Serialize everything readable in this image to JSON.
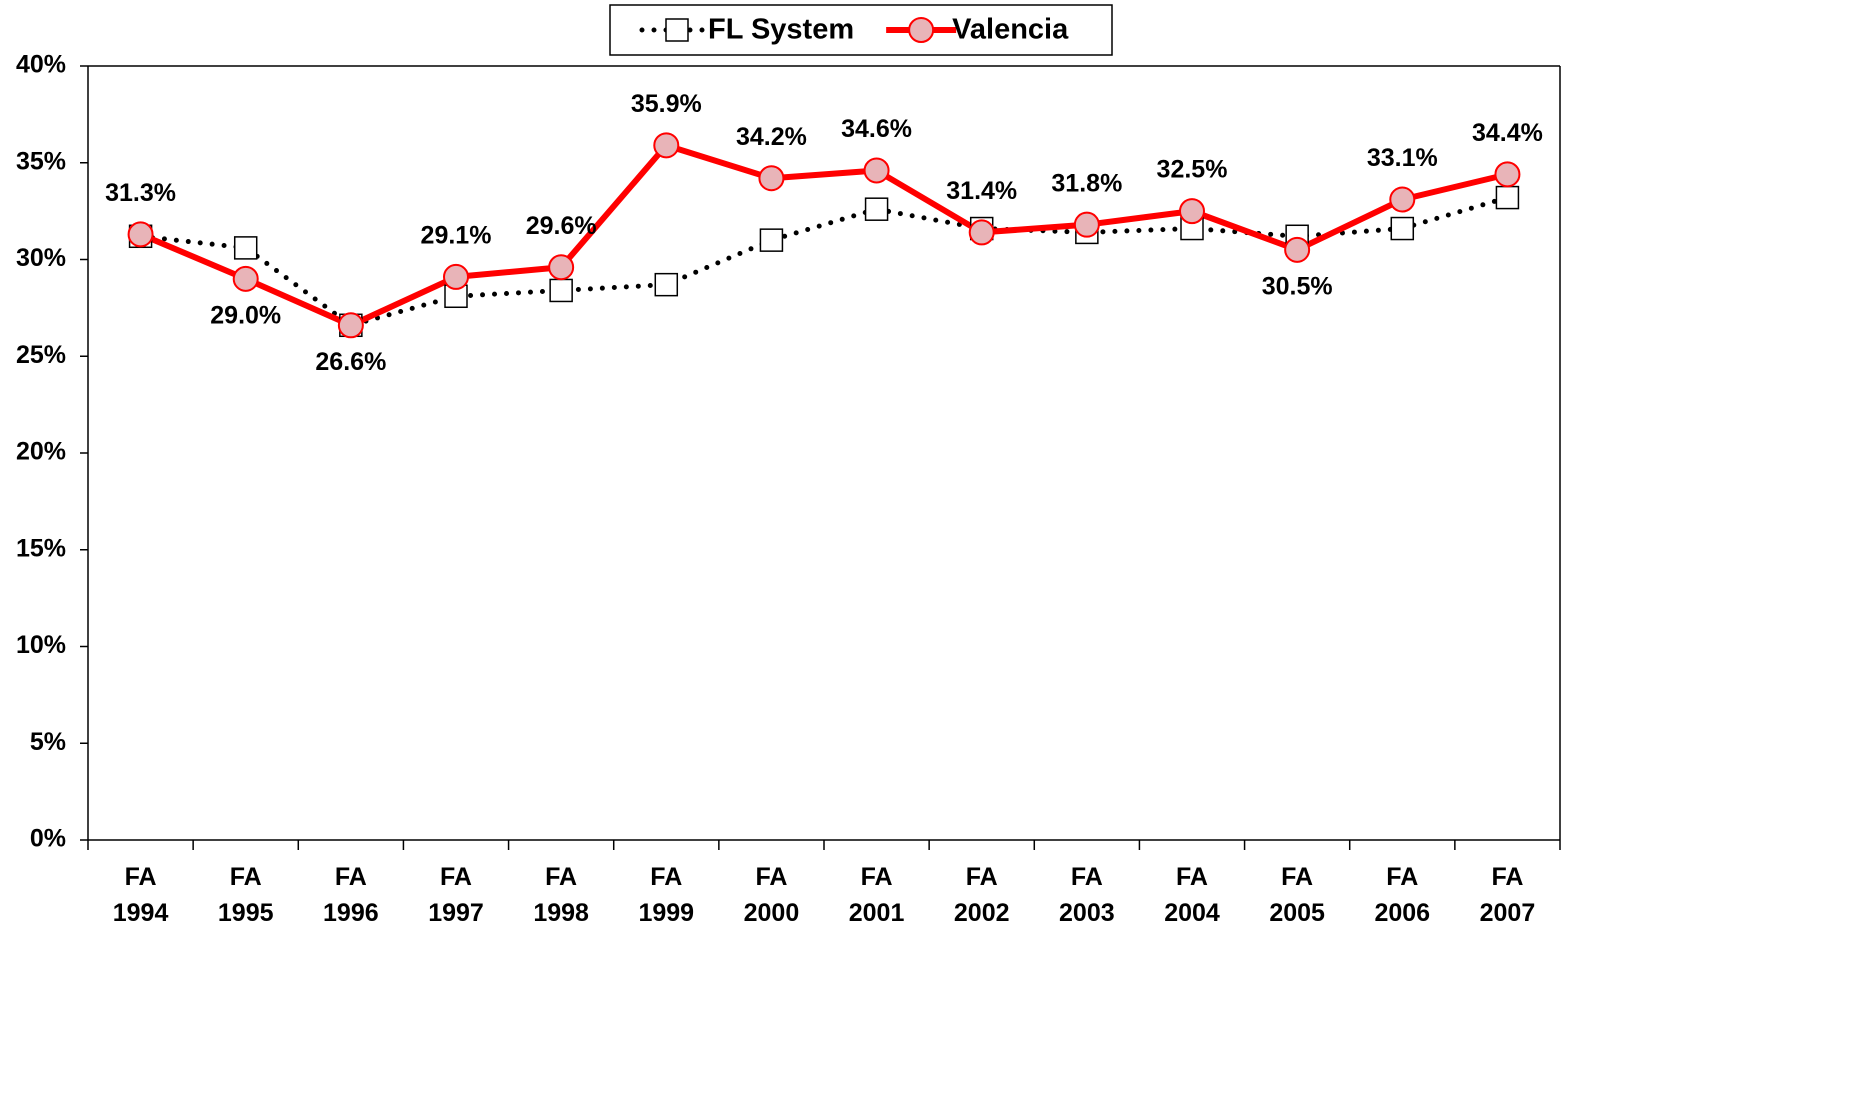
{
  "chart_data": {
    "type": "line",
    "categories": [
      "FA 1994",
      "FA 1995",
      "FA 1996",
      "FA 1997",
      "FA 1998",
      "FA 1999",
      "FA 2000",
      "FA 2001",
      "FA 2002",
      "FA 2003",
      "FA 2004",
      "FA 2005",
      "FA 2006",
      "FA 2007"
    ],
    "series": [
      {
        "name": "FL System",
        "color": "#000000",
        "values": [
          31.2,
          30.6,
          26.6,
          28.1,
          28.4,
          28.7,
          31.0,
          32.6,
          31.6,
          31.4,
          31.6,
          31.2,
          31.6,
          33.2
        ]
      },
      {
        "name": "Valencia",
        "color": "#ff0000",
        "values": [
          31.3,
          29.0,
          26.6,
          29.1,
          29.6,
          35.9,
          34.2,
          34.6,
          31.4,
          31.8,
          32.5,
          30.5,
          33.1,
          34.4
        ],
        "value_labels": [
          "31.3%",
          "29.0%",
          "26.6%",
          "29.1%",
          "29.6%",
          "35.9%",
          "34.2%",
          "34.6%",
          "31.4%",
          "31.8%",
          "32.5%",
          "30.5%",
          "33.1%",
          "34.4%"
        ]
      }
    ],
    "ylim": [
      0,
      40
    ],
    "yticks": [
      {
        "value": 0,
        "label": "0%"
      },
      {
        "value": 5,
        "label": "5%"
      },
      {
        "value": 10,
        "label": "10%"
      },
      {
        "value": 15,
        "label": "15%"
      },
      {
        "value": 20,
        "label": "20%"
      },
      {
        "value": 25,
        "label": "25%"
      },
      {
        "value": 30,
        "label": "30%"
      },
      {
        "value": 35,
        "label": "35%"
      },
      {
        "value": 40,
        "label": "40%"
      }
    ],
    "grid": false,
    "legend": "top"
  }
}
